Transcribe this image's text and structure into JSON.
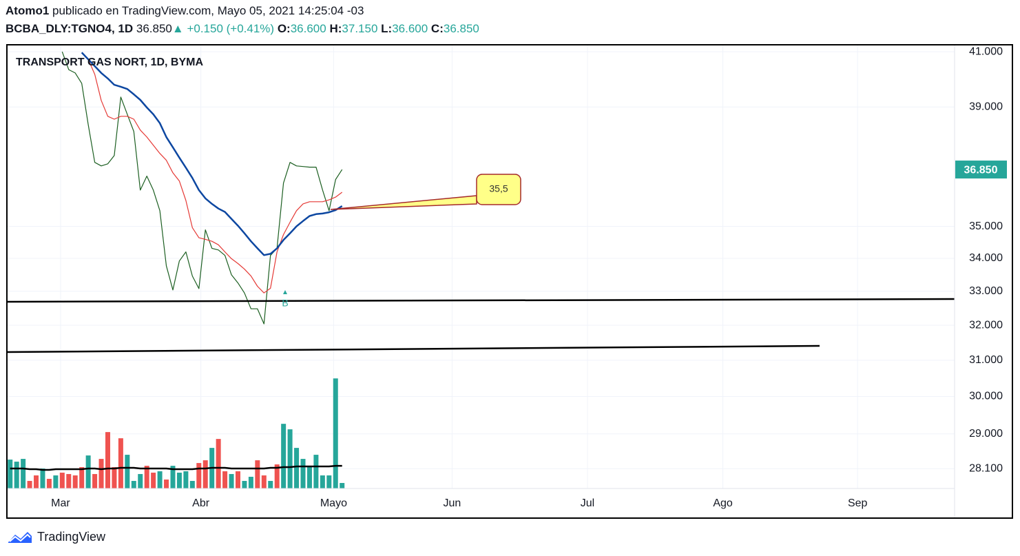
{
  "header": {
    "user": "Atomo1",
    "published": "publicado en TradingView.com, Mayo 05, 2021 14:25:04 -03",
    "symbol": "BCBA_DLY:TGNO4, 1D",
    "price": "36.850",
    "change": "+0.150 (+0.41%)",
    "ohlc": [
      {
        "label": "O:",
        "value": "36.600"
      },
      {
        "label": "H:",
        "value": "37.150"
      },
      {
        "label": "L:",
        "value": "36.600"
      },
      {
        "label": "C:",
        "value": "36.850"
      }
    ]
  },
  "chart_data": {
    "type": "line",
    "title": "TRANSPORT GAS NORT, 1D, BYMA",
    "log_scale": true,
    "grid": true,
    "x": [
      0,
      1,
      2,
      3,
      4,
      5,
      6,
      7,
      8,
      9,
      10,
      11,
      12,
      13,
      14,
      15,
      16,
      17,
      18,
      19,
      20,
      21,
      22,
      23,
      24,
      25,
      26,
      27,
      28,
      29,
      30,
      31,
      32,
      33,
      34,
      35,
      36,
      37,
      38,
      39,
      40,
      41,
      42,
      43,
      44,
      45,
      46,
      47,
      48,
      49,
      50,
      51
    ],
    "xlim": [
      -0.5,
      145.1
    ],
    "xticks": [
      {
        "value": 7.75,
        "label": "Mar"
      },
      {
        "value": 29.3,
        "label": "Abr"
      },
      {
        "value": 49.7,
        "label": "Mayo"
      },
      {
        "value": 67.9,
        "label": "Jun"
      },
      {
        "value": 88.7,
        "label": "Jul"
      },
      {
        "value": 109.5,
        "label": "Ago"
      },
      {
        "value": 130.2,
        "label": "Sep"
      }
    ],
    "ylim": [
      27.6,
      41.26
    ],
    "yticks": [
      {
        "value": 41,
        "label": "41.000"
      },
      {
        "value": 39,
        "label": "39.000"
      },
      {
        "value": 35,
        "label": "35.000"
      },
      {
        "value": 34,
        "label": "34.000"
      },
      {
        "value": 33,
        "label": "33.000"
      },
      {
        "value": 32,
        "label": "32.000"
      },
      {
        "value": 31,
        "label": "31.000"
      },
      {
        "value": 30,
        "label": "30.000"
      },
      {
        "value": 29,
        "label": "29.000"
      },
      {
        "value": 28.1,
        "label": "28.100"
      }
    ],
    "y2lim": [
      0,
      645
    ],
    "last_price": {
      "value": 36.85,
      "label": "36.850"
    },
    "series": [
      {
        "type": "bar",
        "axis": "y2",
        "color": "#26a69a",
        "values": [
          42,
          39,
          43,
          11,
          19,
          29,
          14,
          19,
          23,
          21,
          19,
          31,
          48,
          21,
          43,
          82,
          31,
          73,
          49,
          11,
          21,
          33,
          23,
          25,
          13,
          33,
          23,
          25,
          11,
          37,
          41,
          59,
          72,
          25,
          21,
          25,
          11,
          17,
          41,
          19,
          11,
          35,
          94,
          86,
          59,
          43,
          33,
          49,
          19,
          19,
          160,
          8
        ],
        "colors": [
          "#26a69a",
          "#26a69a",
          "#26a69a",
          "#ef5350",
          "#ef5350",
          "#26a69a",
          "#ef5350",
          "#26a69a",
          "#ef5350",
          "#ef5350",
          "#ef5350",
          "#ef5350",
          "#26a69a",
          "#ef5350",
          "#ef5350",
          "#ef5350",
          "#ef5350",
          "#ef5350",
          "#26a69a",
          "#26a69a",
          "#26a69a",
          "#ef5350",
          "#ef5350",
          "#26a69a",
          "#ef5350",
          "#26a69a",
          "#26a69a",
          "#26a69a",
          "#26a69a",
          "#ef5350",
          "#ef5350",
          "#26a69a",
          "#ef5350",
          "#ef5350",
          "#26a69a",
          "#ef5350",
          "#26a69a",
          "#26a69a",
          "#ef5350",
          "#ef5350",
          "#26a69a",
          "#ef5350",
          "#26a69a",
          "#26a69a",
          "#26a69a",
          "#26a69a",
          "#26a69a",
          "#26a69a",
          "#26a69a",
          "#26a69a",
          "#26a69a",
          "#26a69a"
        ]
      },
      {
        "type": "line",
        "axis": "y2",
        "color": "#000000",
        "width": 2.5,
        "values": [
          29,
          29,
          29,
          28,
          28,
          27,
          27,
          28,
          28,
          28,
          28,
          28,
          29,
          29,
          28,
          29,
          29,
          30,
          30,
          30,
          29,
          29,
          29,
          29,
          29,
          28,
          28,
          28,
          28,
          29,
          29,
          30,
          30,
          30,
          29,
          29,
          29,
          29,
          29,
          29,
          30,
          30,
          31,
          31,
          32,
          32,
          32,
          32,
          32,
          32,
          33,
          33
        ]
      },
      {
        "type": "line",
        "color": "#1b5e20",
        "width": 1.2,
        "values": [
          null,
          null,
          null,
          null,
          null,
          null,
          null,
          null,
          41.0,
          40.34,
          40.22,
          39.84,
          38.38,
          37.09,
          36.97,
          37.04,
          37.32,
          39.35,
          38.74,
          38.14,
          36.17,
          36.63,
          36.17,
          35.5,
          33.77,
          33.04,
          33.92,
          34.2,
          33.46,
          33.08,
          34.89,
          34.31,
          34.26,
          34.09,
          33.5,
          33.25,
          32.95,
          32.48,
          32.48,
          32.04,
          34.09,
          34.31,
          36.4,
          37.09,
          36.97,
          36.95,
          36.93,
          36.93,
          36.17,
          35.5,
          36.52,
          36.85
        ]
      },
      {
        "type": "line",
        "color": "#e53935",
        "width": 1.2,
        "values": [
          null,
          null,
          null,
          null,
          null,
          null,
          null,
          null,
          null,
          null,
          null,
          null,
          40.72,
          40.17,
          39.23,
          38.67,
          38.57,
          38.67,
          38.67,
          38.57,
          38.19,
          37.95,
          37.67,
          37.39,
          37.16,
          36.74,
          36.47,
          35.83,
          34.96,
          34.64,
          34.59,
          34.53,
          34.42,
          34.2,
          33.99,
          33.84,
          33.67,
          33.46,
          33.15,
          32.95,
          33.09,
          34.2,
          34.74,
          35.13,
          35.5,
          35.72,
          35.79,
          35.79,
          35.79,
          35.85,
          35.94,
          36.1
        ]
      },
      {
        "type": "line",
        "color": "#0d47a1",
        "width": 2.5,
        "values": [
          null,
          null,
          null,
          null,
          null,
          null,
          null,
          null,
          null,
          null,
          null,
          40.97,
          40.72,
          40.47,
          40.22,
          40.02,
          39.79,
          39.72,
          39.64,
          39.45,
          39.25,
          38.98,
          38.74,
          38.43,
          37.95,
          37.6,
          37.25,
          36.91,
          36.57,
          36.17,
          35.9,
          35.72,
          35.57,
          35.46,
          35.24,
          35.02,
          34.78,
          34.53,
          34.31,
          34.1,
          34.14,
          34.31,
          34.57,
          34.78,
          35.0,
          35.17,
          35.33,
          35.39,
          35.41,
          35.45,
          35.52,
          35.65
        ]
      }
    ],
    "annotations": [
      {
        "text": "35,5"
      },
      {
        "text": "B"
      }
    ]
  },
  "footer": {
    "brand": "TradingView"
  }
}
